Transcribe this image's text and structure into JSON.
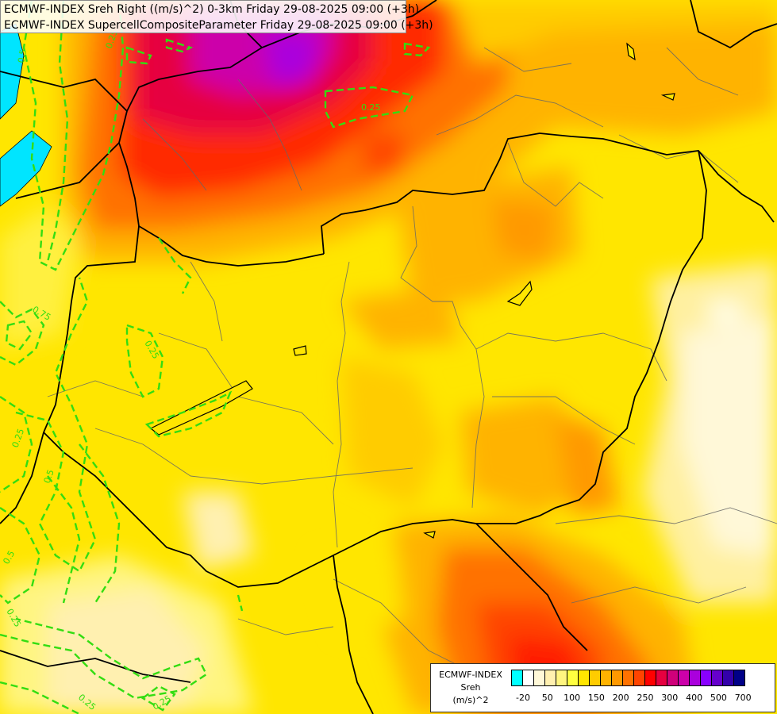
{
  "header": {
    "line1": "ECMWF-INDEX Sreh Right ((m/s)^2) 0-3km Friday 29-08-2025 09:00 (+3h)",
    "line2": "ECMWF-INDEX SupercellCompositeParameter Friday 29-08-2025 09:00 (+3h)"
  },
  "legend": {
    "source": "ECMWF-INDEX",
    "variable": "Sreh",
    "unit": "(m/s)^2",
    "colors": [
      "#00ffff",
      "#ffffff",
      "#fff8d8",
      "#fff0b0",
      "#fff580",
      "#ffff40",
      "#ffe600",
      "#ffcc00",
      "#ffb300",
      "#ff9900",
      "#ff7200",
      "#ff4400",
      "#ff0000",
      "#e60040",
      "#d0007a",
      "#cc00aa",
      "#aa00dd",
      "#8800ff",
      "#6600cc",
      "#3300aa",
      "#000088"
    ],
    "tick_labels": [
      "-20",
      "50",
      "100",
      "150",
      "200",
      "250",
      "300",
      "400",
      "500",
      "700"
    ]
  },
  "contour_labels": [
    "0.25",
    "0.25",
    "0.75",
    "0.25",
    "0.25",
    "0.5",
    "0.5",
    "0.25",
    "0.5",
    "0.25",
    "0.25"
  ]
}
